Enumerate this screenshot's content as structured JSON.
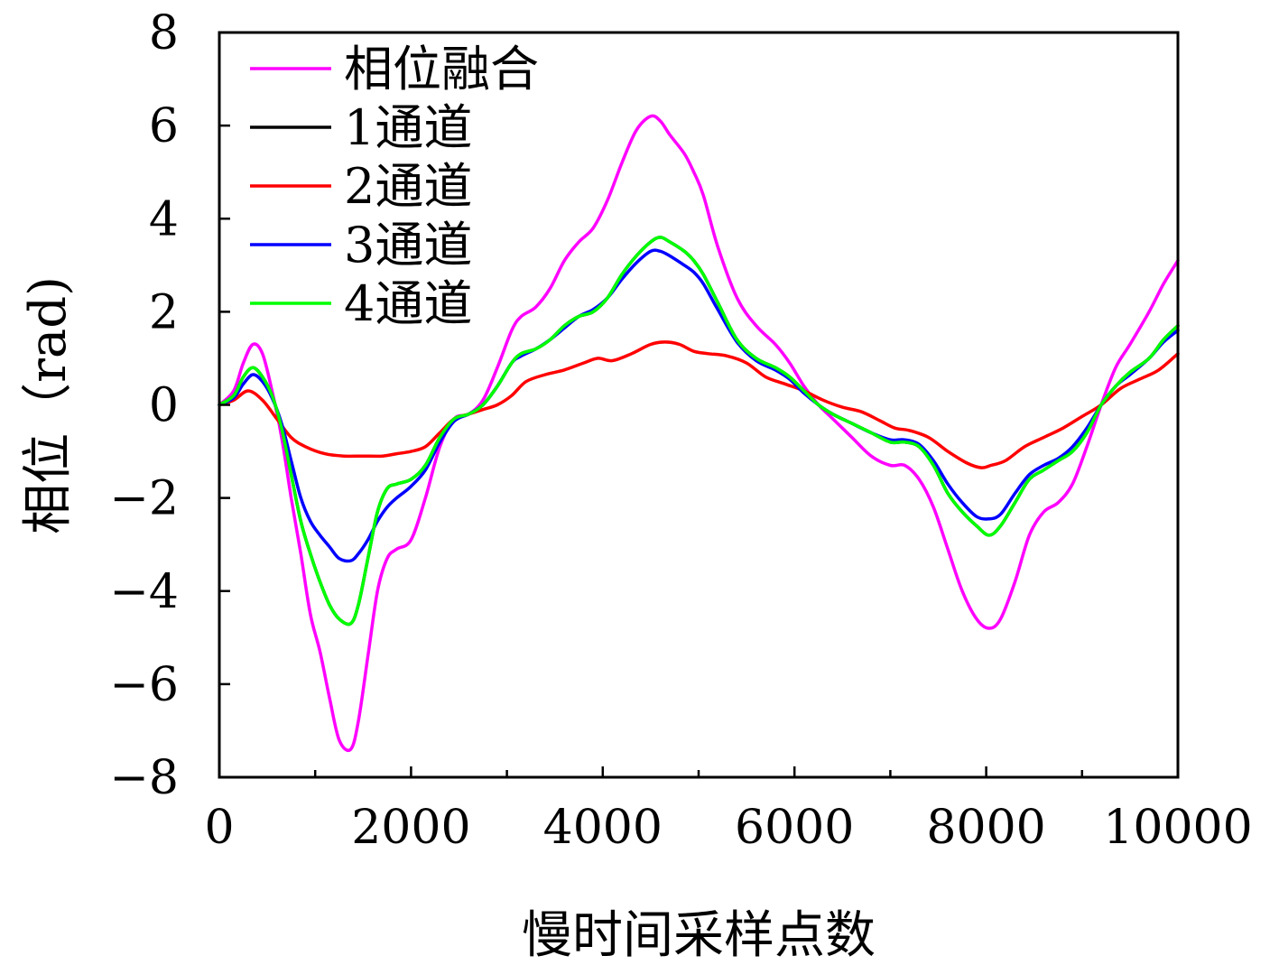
{
  "chart_data": {
    "type": "line",
    "xlabel": "慢时间采样点数",
    "ylabel": "相位（rad)",
    "xlim": [
      0,
      10000
    ],
    "ylim": [
      -8,
      8
    ],
    "xticks": [
      0,
      2000,
      4000,
      6000,
      8000,
      10000
    ],
    "yticks": [
      -8,
      -6,
      -4,
      -2,
      0,
      2,
      4,
      6,
      8
    ],
    "xtick_labels": [
      "0",
      "2000",
      "4000",
      "6000",
      "8000",
      "10000"
    ],
    "ytick_labels": [
      "−8",
      "−6",
      "−4",
      "−2",
      "0",
      "2",
      "4",
      "6",
      "8"
    ],
    "grid": false,
    "legend_position": "top-left",
    "series": [
      {
        "name": "相位融合",
        "color": "#ff00ff",
        "x": [
          0,
          150,
          250,
          350,
          450,
          550,
          650,
          750,
          850,
          950,
          1050,
          1150,
          1250,
          1370,
          1450,
          1550,
          1650,
          1750,
          1850,
          2000,
          2150,
          2300,
          2450,
          2600,
          2750,
          2900,
          3050,
          3150,
          3300,
          3450,
          3600,
          3750,
          3900,
          4050,
          4200,
          4350,
          4500,
          4600,
          4700,
          4850,
          4950,
          5050,
          5200,
          5400,
          5600,
          5800,
          5950,
          6100,
          6250,
          6400,
          6600,
          6800,
          7000,
          7150,
          7300,
          7450,
          7600,
          7750,
          7900,
          8030,
          8150,
          8300,
          8450,
          8600,
          8750,
          8900,
          9050,
          9200,
          9350,
          9500,
          9700,
          9850,
          10000
        ],
        "y": [
          0,
          0.3,
          0.9,
          1.3,
          1.1,
          0.3,
          -0.7,
          -2.0,
          -3.2,
          -4.5,
          -5.3,
          -6.3,
          -7.2,
          -7.4,
          -6.8,
          -5.4,
          -4.0,
          -3.3,
          -3.1,
          -2.9,
          -2.0,
          -0.9,
          -0.3,
          -0.2,
          0.1,
          0.8,
          1.6,
          1.9,
          2.1,
          2.5,
          3.1,
          3.5,
          3.8,
          4.4,
          5.2,
          5.9,
          6.2,
          6.1,
          5.8,
          5.4,
          5.0,
          4.5,
          3.4,
          2.3,
          1.7,
          1.3,
          0.9,
          0.4,
          0.0,
          -0.3,
          -0.7,
          -1.1,
          -1.3,
          -1.3,
          -1.6,
          -2.2,
          -3.1,
          -4.0,
          -4.6,
          -4.8,
          -4.6,
          -3.8,
          -2.8,
          -2.3,
          -2.1,
          -1.7,
          -0.9,
          0.0,
          0.8,
          1.3,
          2.0,
          2.6,
          3.1
        ]
      },
      {
        "name": "1通道",
        "color": "#000000",
        "x": [
          0,
          150,
          250,
          350,
          450,
          550,
          650,
          750,
          850,
          950,
          1050,
          1150,
          1250,
          1370,
          1450,
          1550,
          1650,
          1750,
          1850,
          2000,
          2150,
          2300,
          2450,
          2600,
          2750,
          2900,
          3050,
          3150,
          3300,
          3450,
          3600,
          3750,
          3900,
          4050,
          4200,
          4350,
          4500,
          4600,
          4700,
          4850,
          4950,
          5050,
          5200,
          5400,
          5600,
          5800,
          5950,
          6100,
          6250,
          6400,
          6600,
          6800,
          7000,
          7150,
          7300,
          7450,
          7600,
          7750,
          7900,
          8030,
          8150,
          8300,
          8450,
          8600,
          8750,
          8900,
          9050,
          9200,
          9350,
          9500,
          9700,
          9850,
          10000
        ],
        "y": [
          0,
          0.2,
          0.6,
          0.8,
          0.6,
          0.2,
          -0.5,
          -1.5,
          -2.5,
          -3.2,
          -3.8,
          -4.3,
          -4.6,
          -4.7,
          -4.3,
          -3.3,
          -2.3,
          -1.8,
          -1.7,
          -1.6,
          -1.3,
          -0.7,
          -0.3,
          -0.2,
          0.0,
          0.4,
          0.9,
          1.1,
          1.2,
          1.4,
          1.7,
          1.9,
          2.0,
          2.3,
          2.8,
          3.2,
          3.5,
          3.6,
          3.5,
          3.3,
          3.1,
          2.8,
          2.2,
          1.4,
          1.0,
          0.8,
          0.6,
          0.3,
          0.0,
          -0.2,
          -0.4,
          -0.6,
          -0.8,
          -0.8,
          -0.9,
          -1.3,
          -1.9,
          -2.3,
          -2.6,
          -2.8,
          -2.6,
          -2.1,
          -1.6,
          -1.4,
          -1.2,
          -1.0,
          -0.6,
          0.0,
          0.4,
          0.7,
          1.0,
          1.4,
          1.7
        ]
      },
      {
        "name": "2通道",
        "color": "#ff0000",
        "x": [
          0,
          150,
          300,
          450,
          600,
          750,
          900,
          1100,
          1300,
          1500,
          1700,
          1850,
          2000,
          2150,
          2300,
          2450,
          2600,
          2750,
          2900,
          3050,
          3200,
          3400,
          3600,
          3800,
          3950,
          4100,
          4300,
          4500,
          4650,
          4800,
          4950,
          5100,
          5300,
          5500,
          5700,
          5900,
          6100,
          6300,
          6500,
          6700,
          6900,
          7050,
          7200,
          7400,
          7600,
          7800,
          7950,
          8050,
          8200,
          8400,
          8600,
          8800,
          9000,
          9200,
          9400,
          9600,
          9800,
          10000
        ],
        "y": [
          0,
          0.1,
          0.3,
          0.1,
          -0.3,
          -0.7,
          -0.9,
          -1.05,
          -1.1,
          -1.1,
          -1.1,
          -1.05,
          -1.0,
          -0.9,
          -0.6,
          -0.3,
          -0.2,
          -0.1,
          0.0,
          0.2,
          0.5,
          0.65,
          0.75,
          0.9,
          1.0,
          0.95,
          1.1,
          1.3,
          1.35,
          1.3,
          1.15,
          1.1,
          1.05,
          0.9,
          0.6,
          0.45,
          0.3,
          0.1,
          -0.05,
          -0.15,
          -0.35,
          -0.5,
          -0.55,
          -0.7,
          -1.0,
          -1.25,
          -1.35,
          -1.3,
          -1.2,
          -0.9,
          -0.7,
          -0.5,
          -0.25,
          0.0,
          0.35,
          0.55,
          0.75,
          1.1
        ]
      },
      {
        "name": "3通道",
        "color": "#0000ff",
        "x": [
          0,
          150,
          250,
          350,
          450,
          550,
          650,
          750,
          850,
          950,
          1050,
          1150,
          1250,
          1370,
          1450,
          1550,
          1650,
          1750,
          1850,
          2000,
          2150,
          2300,
          2450,
          2600,
          2750,
          2900,
          3050,
          3150,
          3300,
          3450,
          3600,
          3750,
          3900,
          4050,
          4200,
          4350,
          4500,
          4600,
          4700,
          4850,
          4950,
          5050,
          5200,
          5400,
          5600,
          5800,
          5950,
          6100,
          6250,
          6400,
          6600,
          6800,
          7000,
          7150,
          7300,
          7450,
          7600,
          7750,
          7900,
          8030,
          8150,
          8300,
          8450,
          8600,
          8750,
          8900,
          9050,
          9200,
          9350,
          9500,
          9700,
          9850,
          10000
        ],
        "y": [
          0,
          0.15,
          0.45,
          0.65,
          0.5,
          0.15,
          -0.4,
          -1.2,
          -2.0,
          -2.5,
          -2.8,
          -3.05,
          -3.3,
          -3.35,
          -3.2,
          -2.9,
          -2.5,
          -2.2,
          -2.0,
          -1.75,
          -1.4,
          -0.8,
          -0.35,
          -0.2,
          0.0,
          0.4,
          0.9,
          1.05,
          1.2,
          1.4,
          1.65,
          1.9,
          2.05,
          2.3,
          2.7,
          3.05,
          3.3,
          3.3,
          3.2,
          3.0,
          2.85,
          2.6,
          2.05,
          1.35,
          0.95,
          0.75,
          0.55,
          0.25,
          0.0,
          -0.2,
          -0.4,
          -0.6,
          -0.75,
          -0.75,
          -0.85,
          -1.2,
          -1.7,
          -2.1,
          -2.4,
          -2.45,
          -2.35,
          -1.9,
          -1.5,
          -1.3,
          -1.15,
          -0.9,
          -0.5,
          0.0,
          0.4,
          0.65,
          1.0,
          1.35,
          1.6
        ]
      },
      {
        "name": "4通道",
        "color": "#00ff00",
        "x": [
          0,
          150,
          250,
          350,
          450,
          550,
          650,
          750,
          850,
          950,
          1050,
          1150,
          1250,
          1370,
          1450,
          1550,
          1650,
          1750,
          1850,
          2000,
          2150,
          2300,
          2450,
          2600,
          2750,
          2900,
          3050,
          3150,
          3300,
          3450,
          3600,
          3750,
          3900,
          4050,
          4200,
          4350,
          4500,
          4600,
          4700,
          4850,
          4950,
          5050,
          5200,
          5400,
          5600,
          5800,
          5950,
          6100,
          6250,
          6400,
          6600,
          6800,
          7000,
          7150,
          7300,
          7450,
          7600,
          7750,
          7900,
          8030,
          8150,
          8300,
          8450,
          8600,
          8750,
          8900,
          9050,
          9200,
          9350,
          9500,
          9700,
          9850,
          10000
        ],
        "y": [
          0,
          0.2,
          0.6,
          0.8,
          0.6,
          0.2,
          -0.5,
          -1.5,
          -2.5,
          -3.2,
          -3.8,
          -4.3,
          -4.6,
          -4.7,
          -4.3,
          -3.3,
          -2.3,
          -1.8,
          -1.7,
          -1.6,
          -1.3,
          -0.7,
          -0.3,
          -0.2,
          0.0,
          0.4,
          0.9,
          1.1,
          1.2,
          1.4,
          1.7,
          1.9,
          2.0,
          2.3,
          2.8,
          3.2,
          3.5,
          3.6,
          3.5,
          3.3,
          3.1,
          2.8,
          2.2,
          1.4,
          1.0,
          0.8,
          0.6,
          0.3,
          0.0,
          -0.2,
          -0.4,
          -0.6,
          -0.8,
          -0.8,
          -0.9,
          -1.3,
          -1.9,
          -2.3,
          -2.6,
          -2.8,
          -2.6,
          -2.1,
          -1.6,
          -1.4,
          -1.2,
          -1.0,
          -0.6,
          0.0,
          0.4,
          0.7,
          1.0,
          1.4,
          1.7
        ]
      }
    ]
  }
}
